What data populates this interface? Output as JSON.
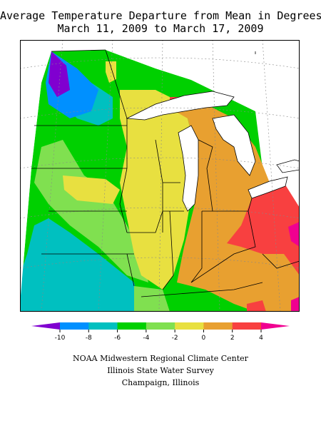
{
  "title": {
    "line1": "Average Temperature Departure from Mean in Degrees F",
    "line2": "March 11, 2009 to March 17, 2009"
  },
  "legend": {
    "bins": [
      {
        "color": "#8000d0"
      },
      {
        "color": "#0090ff"
      },
      {
        "color": "#00c0c0"
      },
      {
        "color": "#00d000"
      },
      {
        "color": "#80e050"
      },
      {
        "color": "#e8e040"
      },
      {
        "color": "#e8a030"
      },
      {
        "color": "#f84040"
      },
      {
        "color": "#f00090"
      }
    ],
    "ticks": [
      "-10",
      "-8",
      "-6",
      "-4",
      "-2",
      "0",
      "2",
      "4"
    ]
  },
  "map": {
    "colors": {
      "purple": "#8000d0",
      "blue": "#0090ff",
      "cyan": "#00c0c0",
      "green": "#00d000",
      "lightgreen": "#80e050",
      "yellow": "#e8e040",
      "orange": "#e8a030",
      "red": "#f84040",
      "magenta": "#f00090"
    }
  },
  "credits": {
    "line1": "NOAA Midwestern Regional Climate Center",
    "line2": "Illinois State Water Survey",
    "line3": "Champaign, Illinois"
  }
}
